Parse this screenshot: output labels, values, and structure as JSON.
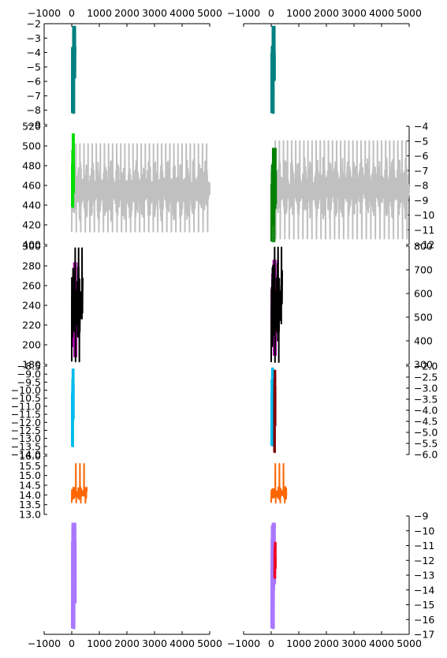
{
  "figure": {
    "background": "#ffffff"
  },
  "chart_data": {
    "type": "line",
    "grid": false,
    "columns": [
      {
        "name": "left",
        "xlim": [
          -1000,
          5000
        ],
        "xticks": [
          "-1000",
          "0",
          "1000",
          "2000",
          "3000",
          "4000",
          "5000"
        ],
        "show_top_ticks": true,
        "show_bottom_ticks": true
      },
      {
        "name": "right",
        "xlim": [
          -1000,
          5000
        ],
        "xticks": [
          "-1000",
          "0",
          "1000",
          "2000",
          "3000",
          "4000",
          "5000"
        ],
        "show_top_ticks": true,
        "show_bottom_ticks": true
      }
    ],
    "panels": [
      {
        "row": 1,
        "col": "left",
        "ylim": [
          -9,
          -2
        ],
        "yaxis": "left",
        "yticks": [
          "-2",
          "-3",
          "-4",
          "-5",
          "-6",
          "-7",
          "-8",
          "-9"
        ],
        "series": [
          {
            "color": "#008080",
            "x_range": [
              0,
              140
            ],
            "y_center": -4.8,
            "y_amp": 1.5,
            "y_min": -8.2,
            "y_max": -2.2,
            "dense": true
          }
        ]
      },
      {
        "row": 1,
        "col": "right",
        "ylim": [
          -9,
          -2
        ],
        "yaxis": "none",
        "yticks": [],
        "series": [
          {
            "color": "#008080",
            "x_range": [
              0,
              140
            ],
            "y_center": -4.8,
            "y_amp": 1.5,
            "y_min": -8.2,
            "y_max": -2.2,
            "dense": true
          }
        ]
      },
      {
        "row": 2,
        "col": "left",
        "ylim": [
          400,
          520
        ],
        "yaxis": "left",
        "yticks": [
          "400",
          "420",
          "440",
          "460",
          "480",
          "500",
          "520"
        ],
        "series": [
          {
            "color": "#c0c0c0",
            "x_range": [
              0,
              5000
            ],
            "y_center": 455,
            "y_amp": 32,
            "y_min": 413,
            "y_max": 502,
            "dense": true
          },
          {
            "color": "#00dd00",
            "x_range": [
              0,
              90
            ],
            "y_center": 470,
            "y_amp": 28,
            "y_min": 438,
            "y_max": 512,
            "dense": true
          }
        ]
      },
      {
        "row": 2,
        "col": "right",
        "ylim": [
          -12,
          -4
        ],
        "yaxis": "right",
        "yticks": [
          "-4",
          "-5",
          "-6",
          "-7",
          "-8",
          "-9",
          "-10",
          "-11",
          "-12"
        ],
        "series": [
          {
            "color": "#c0c0c0",
            "x_range": [
              0,
              5000
            ],
            "y_center": -8.2,
            "y_amp": 2.1,
            "y_min": -11.6,
            "y_max": -5.0,
            "dense": true
          },
          {
            "color": "#008000",
            "x_range": [
              0,
              180
            ],
            "y_center": -8.7,
            "y_amp": 2.2,
            "y_min": -11.8,
            "y_max": -5.5,
            "dense": true
          }
        ]
      },
      {
        "row": 3,
        "col": "left",
        "ylim": [
          180,
          300
        ],
        "yaxis": "left",
        "yticks": [
          "180",
          "200",
          "220",
          "240",
          "260",
          "280",
          "300"
        ],
        "series": [
          {
            "color": "#aa00aa",
            "x_range": [
              0,
              250
            ],
            "y_center": 235,
            "y_amp": 38,
            "y_min": 188,
            "y_max": 283,
            "dense": true
          },
          {
            "color": "#000000",
            "x_range": [
              0,
              400
            ],
            "y_center": 240,
            "y_amp": 45,
            "y_min": 183,
            "y_max": 298,
            "dense": true
          }
        ]
      },
      {
        "row": 3,
        "col": "right",
        "ylim": [
          300,
          800
        ],
        "yaxis": "right",
        "yticks": [
          "300",
          "400",
          "500",
          "600",
          "700",
          "800"
        ],
        "series": [
          {
            "color": "#aa00aa",
            "x_range": [
              0,
              250
            ],
            "y_center": 540,
            "y_amp": 160,
            "y_min": 340,
            "y_max": 740,
            "dense": true
          },
          {
            "color": "#000000",
            "x_range": [
              0,
              400
            ],
            "y_center": 550,
            "y_amp": 190,
            "y_min": 310,
            "y_max": 795,
            "dense": true
          }
        ]
      },
      {
        "row": 4,
        "col": "left",
        "ylim": [
          -14,
          -8.5
        ],
        "yaxis": "left",
        "yticks": [
          "-8.5",
          "-9.0",
          "-9.5",
          "-10.0",
          "-10.5",
          "-11.0",
          "-11.5",
          "-12.0",
          "-12.5",
          "-13.0",
          "-13.5",
          "-14.0"
        ],
        "yticks_right_offset": [
          "-8.5",
          "-9.0",
          "-9.5",
          "-10.0",
          "-10.5",
          "-11.0",
          "-11.5",
          "-12.0",
          "-12.5",
          "-13.0",
          "-13.5",
          "-14.0"
        ],
        "series": [
          {
            "color": "#00bbee",
            "x_range": [
              0,
              80
            ],
            "y_center": -11,
            "y_amp": 1.9,
            "y_min": -13.5,
            "y_max": -8.7,
            "dense": true
          }
        ]
      },
      {
        "row": 4,
        "col": "right",
        "ylim": [
          -6,
          -2
        ],
        "yaxis": "right",
        "yticks": [
          "-2.0",
          "-2.5",
          "-3.0",
          "-3.5",
          "-4.0",
          "-4.5",
          "-5.0",
          "-5.5",
          "-6.0"
        ],
        "series": [
          {
            "color": "#00bbee",
            "x_range": [
              0,
              80
            ],
            "y_center": -3.8,
            "y_amp": 1.2,
            "y_min": -5.6,
            "y_max": -2.1,
            "dense": true
          },
          {
            "color": "#800000",
            "x_range": [
              100,
              160
            ],
            "y_center": -4.0,
            "y_amp": 1.5,
            "y_min": -5.9,
            "y_max": -2.2,
            "dense": true
          }
        ]
      },
      {
        "row": 5,
        "col": "left",
        "ylim": [
          13,
          16
        ],
        "yaxis": "left",
        "yticks": [
          "13.0",
          "13.5",
          "14.0",
          "14.5",
          "15.0",
          "15.5",
          "16.0"
        ],
        "series": [
          {
            "color": "#ff6600",
            "x_range": [
              0,
              550
            ],
            "y_center": 14.1,
            "y_amp": 0.35,
            "y_min": 13.6,
            "y_max": 15.6,
            "dense": true
          }
        ]
      },
      {
        "row": 5,
        "col": "right",
        "ylim": [
          13,
          16
        ],
        "yaxis": "none",
        "yticks": [],
        "series": [
          {
            "color": "#ff6600",
            "x_range": [
              0,
              550
            ],
            "y_center": 14.1,
            "y_amp": 0.35,
            "y_min": 13.6,
            "y_max": 15.6,
            "dense": true
          }
        ]
      },
      {
        "row": 6,
        "col": "left",
        "ylim": [
          -17,
          -9
        ],
        "yaxis": "none",
        "yticks": [],
        "series": [
          {
            "color": "#aa77ff",
            "x_range": [
              0,
              150
            ],
            "y_center": -12.5,
            "y_amp": 3.0,
            "y_min": -16.6,
            "y_max": -9.5,
            "dense": true
          }
        ]
      },
      {
        "row": 6,
        "col": "right",
        "ylim": [
          -17,
          -9
        ],
        "yaxis": "right",
        "yticks": [
          "-9",
          "-10",
          "-11",
          "-12",
          "-13",
          "-14",
          "-15",
          "-16",
          "-17"
        ],
        "series": [
          {
            "color": "#aa77ff",
            "x_range": [
              0,
              150
            ],
            "y_center": -12.5,
            "y_amp": 3.0,
            "y_min": -16.6,
            "y_max": -9.5,
            "dense": true
          },
          {
            "color": "#ee0022",
            "x_range": [
              110,
              170
            ],
            "y_center": -12.0,
            "y_amp": 1.0,
            "y_min": -13.2,
            "y_max": -10.8,
            "dense": true
          }
        ]
      }
    ]
  }
}
